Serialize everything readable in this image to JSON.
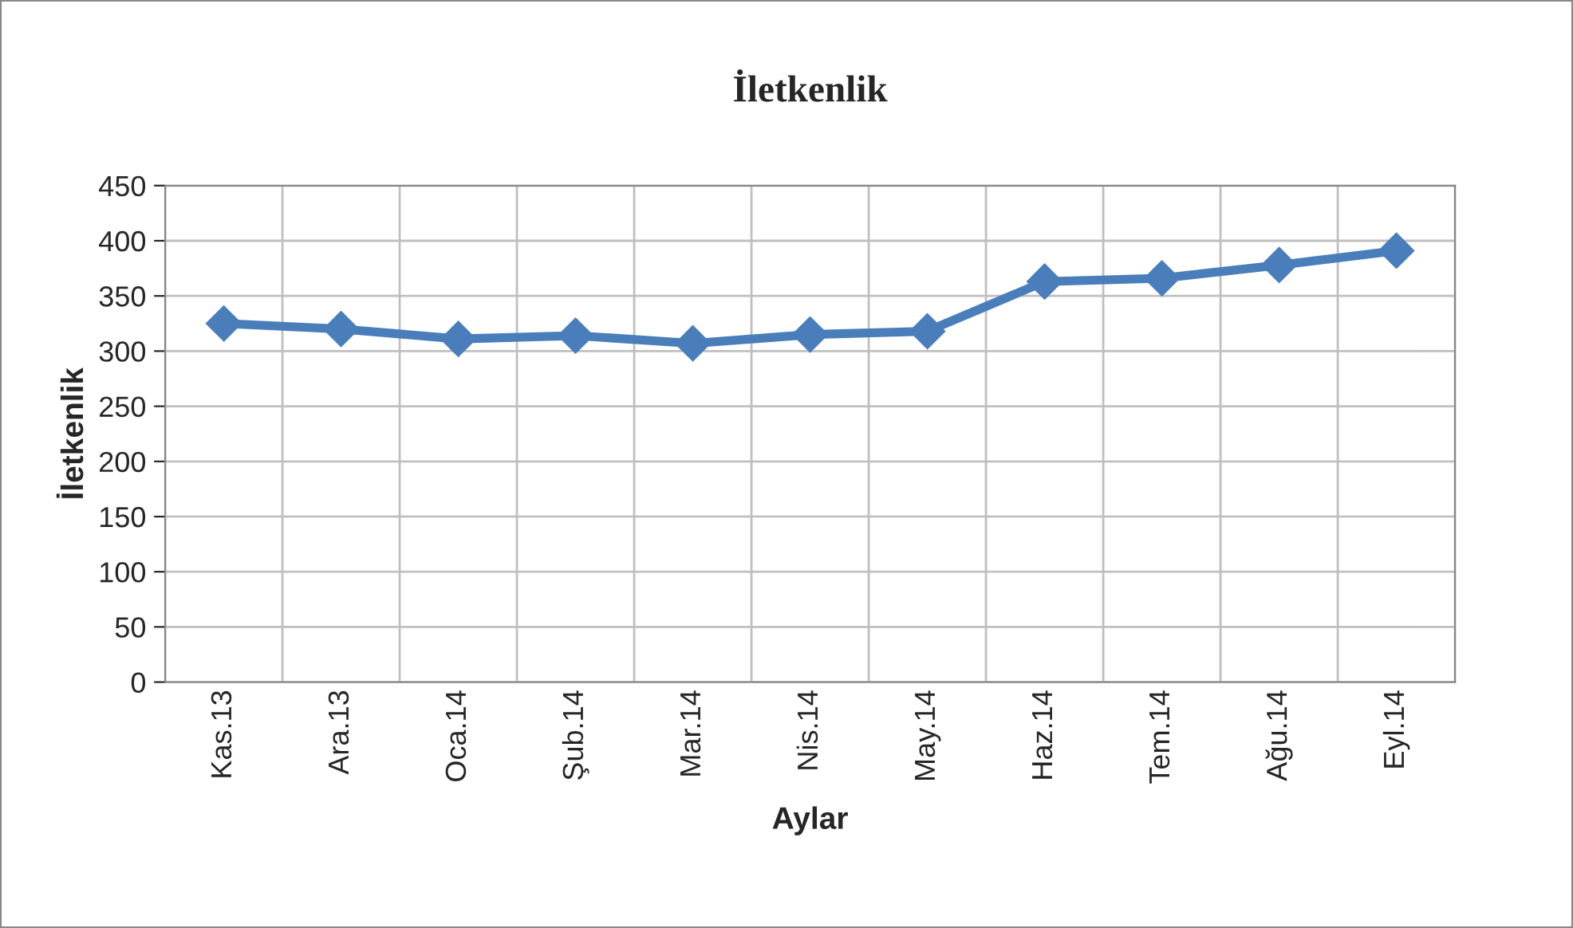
{
  "chart_data": {
    "type": "line",
    "title": "İletkenlik",
    "xlabel": "Aylar",
    "ylabel": "İletkenlik",
    "categories": [
      "Kas.13",
      "Ara.13",
      "Oca.14",
      "Şub.14",
      "Mar.14",
      "Nis.14",
      "May.14",
      "Haz.14",
      "Tem.14",
      "Ağu.14",
      "Eyl.14"
    ],
    "series": [
      {
        "color": "#4a7ebb",
        "values": [
          325,
          320,
          311,
          314,
          307,
          315,
          318,
          363,
          366,
          378,
          391
        ]
      }
    ],
    "ylim": [
      0,
      450
    ],
    "yticks": [
      0,
      50,
      100,
      150,
      200,
      250,
      300,
      350,
      400,
      450
    ],
    "grid": true,
    "marker": "diamond",
    "line_style": "solid"
  }
}
